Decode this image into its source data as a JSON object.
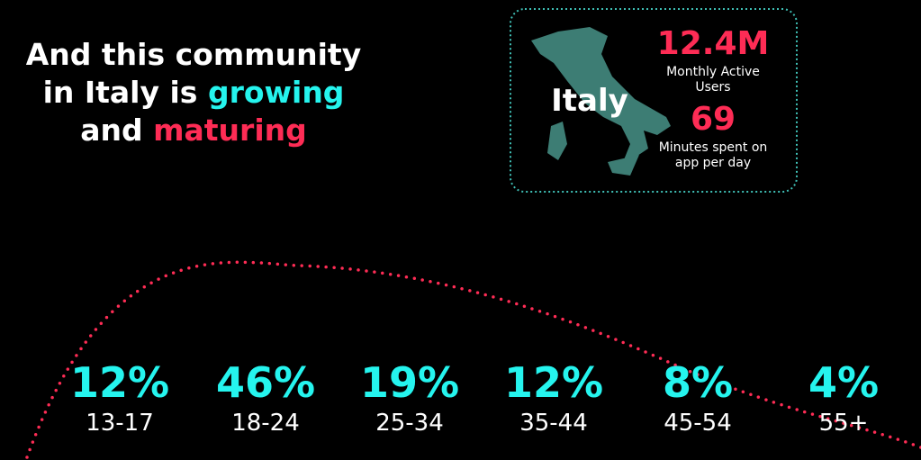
{
  "headline": {
    "line1": "And this community",
    "line2_prefix": "in Italy is",
    "line2_highlight": "growing",
    "line3_prefix": "and",
    "line3_highlight": "maturing"
  },
  "card": {
    "country": "Italy",
    "stats": [
      {
        "value": "12.4M",
        "label": "Monthly Active Users"
      },
      {
        "value": "69",
        "label": "Minutes spent on app per day"
      }
    ]
  },
  "age_groups": [
    {
      "share": "12%",
      "range": "13-17"
    },
    {
      "share": "46%",
      "range": "18-24"
    },
    {
      "share": "19%",
      "range": "25-34"
    },
    {
      "share": "12%",
      "range": "35-44"
    },
    {
      "share": "8%",
      "range": "45-54"
    },
    {
      "share": "4%",
      "range": "55+"
    }
  ]
}
